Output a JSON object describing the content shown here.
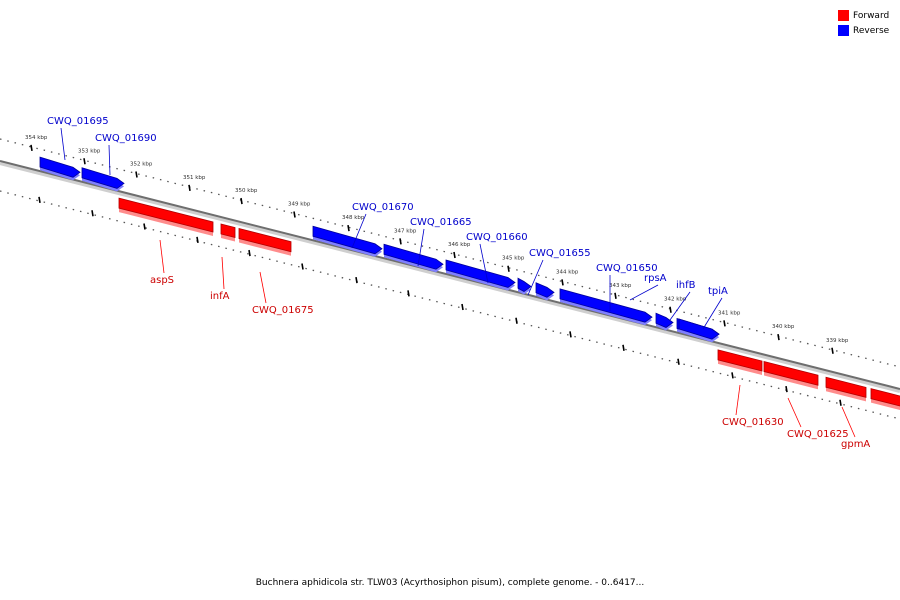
{
  "legend": {
    "forward": {
      "label": "Forward",
      "color": "#ff0000"
    },
    "reverse": {
      "label": "Reverse",
      "color": "#0000ff"
    }
  },
  "caption": "Buchnera aphidicola str. TLW03 (Acyrthosiphon pisum), complete genome. - 0..6417...",
  "scale_ticks": [
    "354 kbp",
    "353 kbp",
    "352 kbp",
    "351 kbp",
    "350 kbp",
    "349 kbp",
    "348 kbp",
    "347 kbp",
    "346 kbp",
    "345 kbp",
    "344 kbp",
    "343 kbp",
    "342 kbp",
    "341 kbp",
    "340 kbp",
    "339 kbp"
  ],
  "genes": [
    {
      "name": "CWQ_01695",
      "strand": "reverse"
    },
    {
      "name": "CWQ_01690",
      "strand": "reverse"
    },
    {
      "name": "aspS",
      "strand": "forward"
    },
    {
      "name": "infA",
      "strand": "forward"
    },
    {
      "name": "CWQ_01675",
      "strand": "forward"
    },
    {
      "name": "CWQ_01670",
      "strand": "reverse"
    },
    {
      "name": "CWQ_01665",
      "strand": "reverse"
    },
    {
      "name": "CWQ_01660",
      "strand": "reverse"
    },
    {
      "name": "CWQ_01655",
      "strand": "reverse"
    },
    {
      "name": "",
      "strand": "reverse"
    },
    {
      "name": "CWQ_01650",
      "strand": "reverse"
    },
    {
      "name": "rpsA",
      "strand": "reverse"
    },
    {
      "name": "ihfB",
      "strand": "reverse"
    },
    {
      "name": "tpiA",
      "strand": "reverse"
    },
    {
      "name": "CWQ_01630",
      "strand": "forward"
    },
    {
      "name": "CWQ_01625",
      "strand": "forward"
    },
    {
      "name": "gpmA",
      "strand": "forward"
    },
    {
      "name": "",
      "strand": "forward"
    }
  ]
}
